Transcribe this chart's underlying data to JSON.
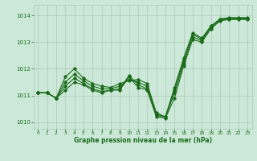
{
  "x": [
    0,
    1,
    2,
    3,
    4,
    5,
    6,
    7,
    8,
    9,
    10,
    11,
    12,
    13,
    14,
    15,
    16,
    17,
    18,
    19,
    20,
    21,
    22,
    23
  ],
  "series1": [
    1011.1,
    1011.1,
    1010.9,
    1011.2,
    1011.5,
    1011.4,
    1011.2,
    1011.1,
    1011.2,
    1011.2,
    1011.7,
    1011.3,
    1011.2,
    1010.2,
    1010.15,
    1010.9,
    1012.1,
    1013.1,
    1013.0,
    1013.5,
    1013.8,
    1013.85,
    1013.85,
    1013.85
  ],
  "series2": [
    1011.1,
    1011.1,
    1010.9,
    1011.35,
    1011.65,
    1011.45,
    1011.25,
    1011.15,
    1011.2,
    1011.25,
    1011.75,
    1011.4,
    1011.25,
    1010.25,
    1010.2,
    1011.1,
    1012.2,
    1013.2,
    1013.05,
    1013.55,
    1013.82,
    1013.88,
    1013.88,
    1013.88
  ],
  "series3": [
    1011.1,
    1011.1,
    1010.9,
    1011.5,
    1011.8,
    1011.55,
    1011.35,
    1011.25,
    1011.25,
    1011.35,
    1011.6,
    1011.5,
    1011.35,
    1010.3,
    1010.2,
    1011.2,
    1012.3,
    1013.3,
    1013.1,
    1013.6,
    1013.85,
    1013.9,
    1013.9,
    1013.9
  ],
  "series4": [
    1011.1,
    1011.1,
    1010.9,
    1011.7,
    1012.0,
    1011.65,
    1011.45,
    1011.35,
    1011.3,
    1011.45,
    1011.55,
    1011.6,
    1011.45,
    1010.35,
    1010.2,
    1011.3,
    1012.4,
    1013.35,
    1013.15,
    1013.6,
    1013.87,
    1013.92,
    1013.92,
    1013.92
  ],
  "line_color": "#1a6b1a",
  "bg_color": "#cce8d8",
  "grid_color": "#b0c8b8",
  "xlabel": "Graphe pression niveau de la mer (hPa)",
  "ylim": [
    1009.75,
    1014.4
  ],
  "xlim": [
    -0.5,
    23.5
  ],
  "yticks": [
    1010,
    1011,
    1012,
    1013,
    1014
  ],
  "xticks": [
    0,
    1,
    2,
    3,
    4,
    5,
    6,
    7,
    8,
    9,
    10,
    11,
    12,
    13,
    14,
    15,
    16,
    17,
    18,
    19,
    20,
    21,
    22,
    23
  ]
}
